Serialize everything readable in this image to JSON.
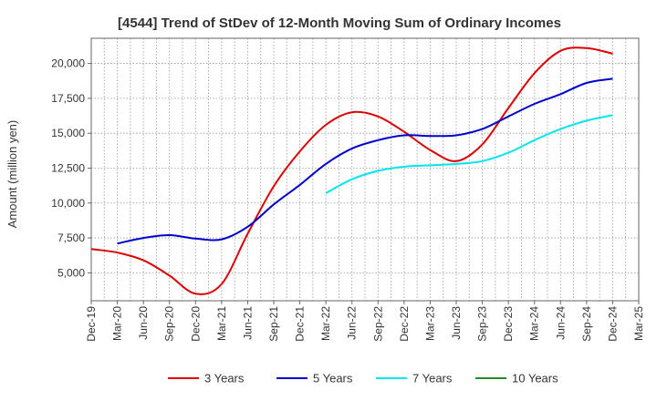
{
  "chart_data": {
    "type": "line",
    "title": "[4544]  Trend of StDev of 12-Month Moving Sum of Ordinary Incomes",
    "xlabel": "",
    "ylabel": "Amount (million yen)",
    "ylim": [
      3000,
      21800
    ],
    "yticks": [
      5000,
      7500,
      10000,
      12500,
      15000,
      17500,
      20000
    ],
    "ytick_labels": [
      "5,000",
      "7,500",
      "10,000",
      "12,500",
      "15,000",
      "17,500",
      "20,000"
    ],
    "xticks": [
      "Dec-19",
      "Mar-20",
      "Jun-20",
      "Sep-20",
      "Dec-20",
      "Mar-21",
      "Jun-21",
      "Sep-21",
      "Dec-21",
      "Mar-22",
      "Jun-22",
      "Sep-22",
      "Dec-22",
      "Mar-23",
      "Jun-23",
      "Sep-23",
      "Dec-23",
      "Mar-24",
      "Jun-24",
      "Sep-24",
      "Dec-24",
      "Mar-25"
    ],
    "grid": true,
    "legend_position": "bottom",
    "series": [
      {
        "name": "3 Years",
        "color": "#dd0000",
        "start_index": 0,
        "values": [
          6700,
          6450,
          5900,
          4800,
          3500,
          4200,
          7800,
          11200,
          13700,
          15600,
          16500,
          16200,
          15100,
          13800,
          13000,
          14200,
          16800,
          19300,
          20900,
          21100,
          20700
        ]
      },
      {
        "name": "5 Years",
        "color": "#0000cc",
        "start_index": 1,
        "values": [
          7100,
          7500,
          7700,
          7450,
          7400,
          8300,
          9900,
          11300,
          12800,
          13900,
          14500,
          14850,
          14800,
          14850,
          15300,
          16200,
          17100,
          17800,
          18600,
          18900
        ]
      },
      {
        "name": "7 Years",
        "color": "#00e5ee",
        "start_index": 9,
        "values": [
          10700,
          11700,
          12300,
          12600,
          12700,
          12800,
          13000,
          13600,
          14500,
          15300,
          15900,
          16300
        ]
      },
      {
        "name": "10 Years",
        "color": "#228b22",
        "start_index": 0,
        "values": []
      }
    ]
  }
}
